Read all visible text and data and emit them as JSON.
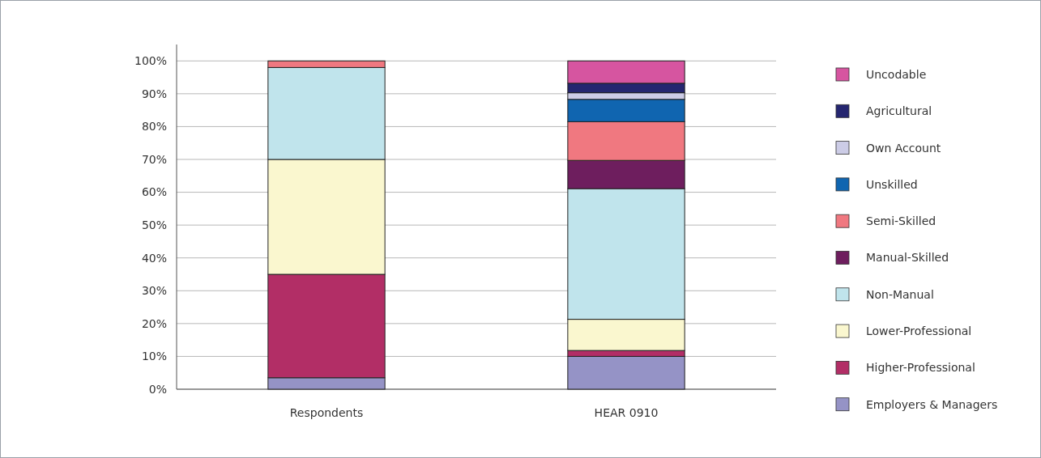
{
  "chart_data": {
    "type": "bar",
    "stacked": true,
    "categories": [
      "Respondents",
      "HEAR 0910"
    ],
    "series": [
      {
        "name": "Employers & Managers",
        "color": "#9593c6",
        "values": [
          3.5,
          10
        ]
      },
      {
        "name": "Higher-Professional",
        "color": "#b22e66",
        "values": [
          31.5,
          1.8
        ]
      },
      {
        "name": "Lower-Professional",
        "color": "#faf7cf",
        "values": [
          35,
          9.5
        ]
      },
      {
        "name": "Non-Manual",
        "color": "#c0e4ec",
        "values": [
          28,
          39.8
        ]
      },
      {
        "name": "Manual-Skilled",
        "color": "#6e1e5e",
        "values": [
          0,
          8.6
        ]
      },
      {
        "name": "Semi-Skilled",
        "color": "#f07880",
        "values": [
          2,
          11.8
        ]
      },
      {
        "name": "Unskilled",
        "color": "#1065b0",
        "values": [
          0,
          6.8
        ]
      },
      {
        "name": "Own Account",
        "color": "#cccce6",
        "values": [
          0,
          2
        ]
      },
      {
        "name": "Agricultural",
        "color": "#252670",
        "values": [
          0,
          2.9
        ]
      },
      {
        "name": "Uncodable",
        "color": "#d655a0",
        "values": [
          0,
          6.8
        ]
      }
    ],
    "ylim": [
      0,
      105
    ],
    "yticks": [
      {
        "value": 0,
        "label": "0%"
      },
      {
        "value": 10,
        "label": "10%"
      },
      {
        "value": 20,
        "label": "20%"
      },
      {
        "value": 30,
        "label": "30%"
      },
      {
        "value": 40,
        "label": "40%"
      },
      {
        "value": 50,
        "label": "50%"
      },
      {
        "value": 60,
        "label": "60%"
      },
      {
        "value": 70,
        "label": "70%"
      },
      {
        "value": 80,
        "label": "80%"
      },
      {
        "value": 90,
        "label": "90%"
      },
      {
        "value": 100,
        "label": "100%"
      }
    ],
    "grid": "y",
    "legend": "right"
  }
}
